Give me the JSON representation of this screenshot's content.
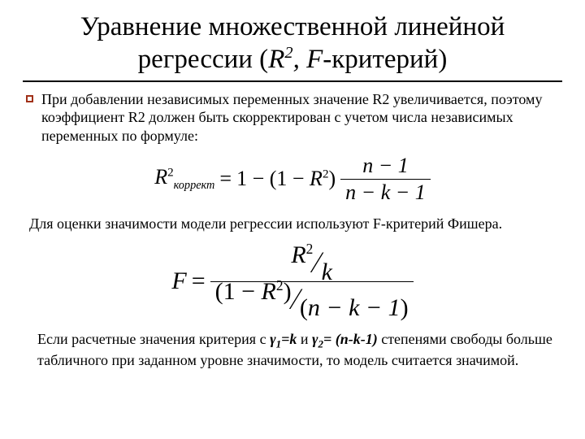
{
  "title": {
    "line": "Уравнение множественной линейной регрессии (",
    "r": "R",
    "sup": "2",
    "comma": ", ",
    "f": "F",
    "tail": "-критерий)"
  },
  "p1": "При добавлении независимых переменных значение R2 увеличивается, поэтому коэффициент R2 должен быть скорректирован с учетом числа независимых переменных по формуле:",
  "formula1": {
    "lhs_R": "R",
    "lhs_sup": "2",
    "lhs_sub": "коррект",
    "eq": " = ",
    "one_minus_open": "1 − (1 − ",
    "R": "R",
    "R_sup": "2",
    "close_paren": ")",
    "frac_num": "n − 1",
    "frac_den": "n − k − 1"
  },
  "p2": "Для оценки значимости модели регрессии используют F-критерий Фишера.",
  "formula2": {
    "F": "F",
    "eq": " = ",
    "num_R": "R",
    "num_sup": "2",
    "num_k": "k",
    "den_open": "(1 − ",
    "den_R": "R",
    "den_sup": "2",
    "den_close": ")",
    "den_right_open": "(",
    "den_right": "n − k − 1",
    "den_right_close": ")"
  },
  "p3": {
    "a": "Если расчетные значения критерия с ",
    "g1": "γ",
    "g1s": "1",
    "eq1": "=k",
    "and": " и ",
    "g2": "γ",
    "g2s": "2",
    "eq2": "= (n-k-1)",
    "b": " степенями свободы больше табличного при заданном уровне значимости, то модель считается значимой."
  },
  "colors": {
    "bullet_border": "#a03018",
    "text": "#000000",
    "bg": "#ffffff"
  }
}
